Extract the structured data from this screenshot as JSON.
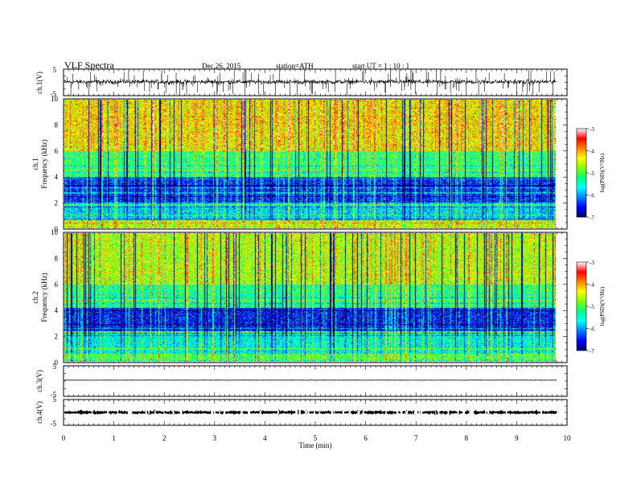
{
  "header": {
    "title": "VLF  Spectra",
    "date": "Dec.26, 2015",
    "station": "station=ATH",
    "start": "start  UT  =   1  : 10 : 1"
  },
  "chart_data": [
    {
      "type": "line",
      "panel": "ch1-waveform",
      "ylabel": "ch.1(V)",
      "ylim": [
        -5,
        5
      ],
      "yticks": [
        5,
        -5
      ],
      "description_level": {
        "baseline_v": 0.2,
        "noise_v": 0.4,
        "spikes": "frequent up to +/-5 V"
      }
    },
    {
      "type": "heatmap",
      "panel": "ch1-spectrogram",
      "ylabel_top": "ch.1",
      "ylabel": "Frequency  (kHz)",
      "ylim": [
        0,
        10
      ],
      "yticks": [
        0,
        2,
        4,
        6,
        8,
        10
      ],
      "colorbar": {
        "label": "log(PSD)(V²/Hz)",
        "range": [
          -7,
          -3
        ],
        "ticks": [
          -3,
          -4,
          -5,
          -6,
          -7
        ]
      },
      "bands_khz_logpsd": [
        {
          "from": 0,
          "to": 0.6,
          "level": -4.5
        },
        {
          "from": 0.6,
          "to": 2,
          "level": -5.8
        },
        {
          "from": 2,
          "to": 4,
          "level": -6.4
        },
        {
          "from": 4,
          "to": 6,
          "level": -5.2
        },
        {
          "from": 6,
          "to": 10,
          "level": -4.3
        }
      ]
    },
    {
      "type": "heatmap",
      "panel": "ch2-spectrogram",
      "ylabel_top": "ch.2",
      "ylabel": "Frequency  (kHz)",
      "ylim": [
        0,
        10
      ],
      "yticks": [
        0,
        2,
        4,
        6,
        8,
        10
      ],
      "colorbar": {
        "label": "log(PSD)(V²/Hz)",
        "range": [
          -7,
          -3
        ],
        "ticks": [
          -3,
          -4,
          -5,
          -6,
          -7
        ]
      },
      "bands_khz_logpsd": [
        {
          "from": 0,
          "to": 0.6,
          "level": -5.0
        },
        {
          "from": 0.6,
          "to": 2.4,
          "level": -5.6
        },
        {
          "from": 2.4,
          "to": 4.2,
          "level": -6.5
        },
        {
          "from": 4.2,
          "to": 6,
          "level": -5.3
        },
        {
          "from": 6,
          "to": 10,
          "level": -4.6
        }
      ]
    },
    {
      "type": "line",
      "panel": "ch3-waveform",
      "ylabel": "ch.3(V)",
      "ylim": [
        -5,
        5
      ],
      "yticks": [
        5,
        -5
      ],
      "description_level": {
        "baseline_v": 0.3,
        "noise_v": 0.05
      }
    },
    {
      "type": "line",
      "panel": "ch4-waveform",
      "ylabel": "ch.4(V)",
      "ylim": [
        -5,
        5
      ],
      "yticks": [
        5,
        -5
      ],
      "description_level": {
        "baseline_v": 0.0,
        "noise_v": 0.25
      }
    }
  ],
  "xaxis": {
    "xlabel": "Time  (min)",
    "xlim": [
      0,
      10
    ],
    "ticks": [
      0,
      1,
      2,
      3,
      4,
      5,
      6,
      7,
      8,
      9,
      10
    ],
    "data_end_min": 9.8
  },
  "colors": {
    "scale": [
      "#000066",
      "#0000ff",
      "#0080ff",
      "#00ffff",
      "#00ff80",
      "#80ff00",
      "#ffff00",
      "#ff8000",
      "#ff0000",
      "#ffffff"
    ]
  }
}
